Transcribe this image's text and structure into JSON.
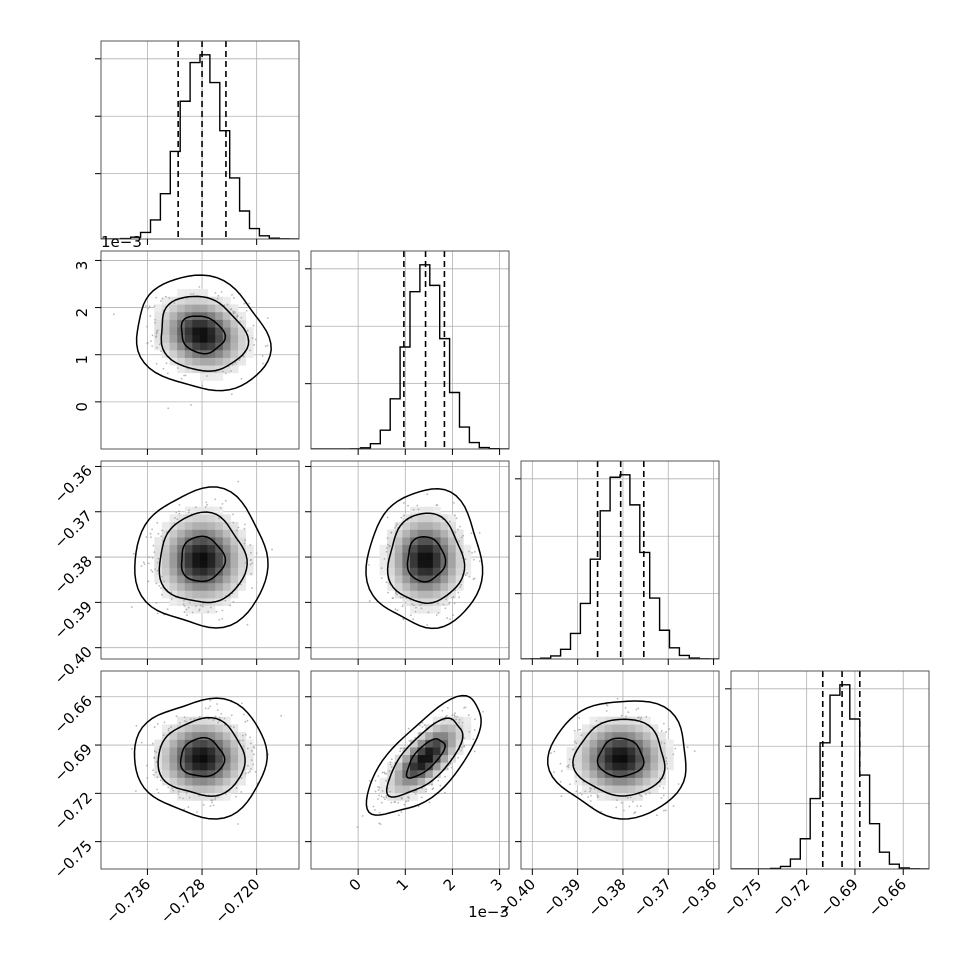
{
  "chart_data": {
    "type": "corner",
    "n_params": 4,
    "grid": true,
    "quantile_lines": "dashed",
    "colors": {
      "line": "#000000",
      "grid": "#b0b0b0",
      "points": "#9a9a9a",
      "background": "#ffffff"
    },
    "params": [
      {
        "range": [
          -0.7428,
          -0.7138
        ],
        "ticks": [
          -0.736,
          -0.728,
          -0.72
        ],
        "tick_labels": [
          "−0.736",
          "−0.728",
          "−0.720"
        ],
        "offset_label": "",
        "mean": -0.728,
        "sd": 0.0032,
        "quantiles": [
          -0.7315,
          -0.728,
          -0.7245
        ]
      },
      {
        "range": [
          -0.001,
          0.0032
        ],
        "ticks": [
          0,
          0.001,
          0.002,
          0.003
        ],
        "tick_labels": [
          "0",
          "1",
          "2",
          "3"
        ],
        "offset_label": "1e−3",
        "mean": 0.00143,
        "sd": 0.0004,
        "quantiles": [
          0.00097,
          0.00143,
          0.00183
        ]
      },
      {
        "range": [
          -0.4025,
          -0.3588
        ],
        "ticks": [
          -0.4,
          -0.39,
          -0.38,
          -0.37,
          -0.36
        ],
        "tick_labels": [
          "−0.40",
          "−0.39",
          "−0.38",
          "−0.37",
          "−0.36"
        ],
        "offset_label": "",
        "mean": -0.3805,
        "sd": 0.005,
        "quantiles": [
          -0.3856,
          -0.3805,
          -0.3754
        ]
      },
      {
        "range": [
          -0.767,
          -0.644
        ],
        "ticks": [
          -0.75,
          -0.72,
          -0.69,
          -0.66
        ],
        "tick_labels": [
          "−0.75",
          "−0.72",
          "−0.69",
          "−0.66"
        ],
        "offset_label": "",
        "mean": -0.698,
        "sd": 0.012,
        "quantiles": [
          -0.71,
          -0.698,
          -0.687
        ]
      }
    ],
    "correlations": [
      [
        1,
        -0.15,
        0,
        0
      ],
      [
        -0.15,
        1,
        0,
        0.7
      ],
      [
        0,
        0,
        1,
        0
      ],
      [
        0,
        0.7,
        0,
        1
      ]
    ],
    "histogram_bins": 20,
    "contour_levels": [
      0.39,
      0.86,
      0.99
    ]
  }
}
